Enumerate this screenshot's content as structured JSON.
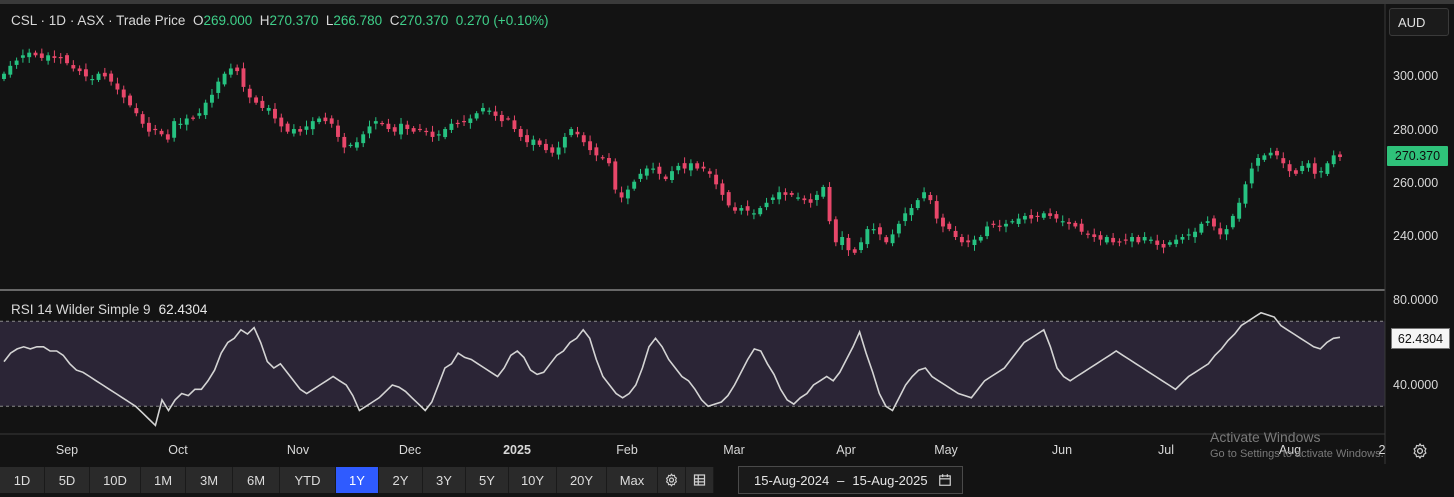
{
  "header": {
    "symbol": "CSL",
    "sep": "·",
    "interval": "1D",
    "exchange": "ASX",
    "price_type": "Trade Price",
    "open_label": "O",
    "open": "269.000",
    "high_label": "H",
    "high": "270.370",
    "low_label": "L",
    "low": "266.780",
    "close_label": "C",
    "close": "270.370",
    "change": "0.270 (+0.10%)"
  },
  "currency_button": "AUD",
  "price_label": "270.370",
  "rsi": {
    "title": "RSI 14 Wilder Simple 9",
    "value": "62.4304",
    "value_label": "62.4304",
    "y_ticks": [
      "80.0000",
      "40.0000"
    ]
  },
  "price_y_ticks": [
    "300.000",
    "280.000",
    "260.000",
    "240.000"
  ],
  "x_ticks": [
    "Sep",
    "Oct",
    "Nov",
    "Dec",
    "2025",
    "Feb",
    "Mar",
    "Apr",
    "May",
    "Jun",
    "Jul",
    "Aug",
    "2"
  ],
  "toolbar": {
    "ranges": [
      "1D",
      "5D",
      "10D",
      "1M",
      "3M",
      "6M",
      "YTD",
      "1Y",
      "2Y",
      "3Y",
      "5Y",
      "10Y",
      "20Y",
      "Max"
    ],
    "active": "1Y"
  },
  "date_range": {
    "from": "15-Aug-2024",
    "sep": "–",
    "to": "15-Aug-2025"
  },
  "watermark": {
    "line1": "Activate Windows",
    "line2": "Go to Settings to activate Windows."
  },
  "colors": {
    "up": "#26c281",
    "down": "#e8476a",
    "rsi_band": "#2b2536",
    "active": "#2f5bff"
  },
  "chart_data": [
    {
      "type": "candlestick",
      "title": "CSL · 1D · ASX · Trade Price",
      "currency": "AUD",
      "y_ticks": [
        240,
        260,
        280,
        300
      ],
      "x_ticks": [
        "Sep",
        "Oct",
        "Nov",
        "Dec",
        "2025",
        "Feb",
        "Mar",
        "Apr",
        "May",
        "Jun",
        "Jul",
        "Aug"
      ],
      "date_range": [
        "15-Aug-2024",
        "15-Aug-2025"
      ],
      "last": {
        "open": 269.0,
        "high": 270.37,
        "low": 266.78,
        "close": 270.37
      },
      "closes": [
        302,
        305,
        307,
        309,
        310,
        309,
        308,
        309,
        308,
        308,
        306,
        304,
        303,
        301,
        300,
        302,
        301,
        299,
        296,
        293,
        290,
        287,
        283,
        280,
        281,
        279,
        277,
        284,
        283,
        285,
        285,
        287,
        291,
        294,
        299,
        302,
        304,
        303,
        297,
        293,
        291,
        289,
        289,
        285,
        282,
        280,
        281,
        280,
        282,
        284,
        285,
        284,
        283,
        278,
        274,
        275,
        276,
        279,
        282,
        284,
        283,
        281,
        280,
        283,
        281,
        280,
        281,
        280,
        278,
        279,
        281,
        283,
        283,
        284,
        285,
        287,
        289,
        288,
        286,
        284,
        285,
        281,
        278,
        276,
        277,
        275,
        273,
        272,
        274,
        278,
        281,
        279,
        276,
        273,
        271,
        270,
        268,
        258,
        255,
        258,
        261,
        264,
        266,
        266,
        264,
        262,
        265,
        267,
        266,
        268,
        266,
        266,
        264,
        260,
        256,
        252,
        250,
        251,
        250,
        249,
        251,
        253,
        255,
        257,
        256,
        256,
        255,
        254,
        253,
        256,
        259,
        246,
        238,
        240,
        235,
        234,
        238,
        243,
        243,
        241,
        238,
        241,
        245,
        249,
        251,
        254,
        257,
        254,
        247,
        244,
        243,
        240,
        238,
        238,
        239,
        240,
        244,
        245,
        244,
        245,
        246,
        247,
        248,
        247,
        248,
        249,
        248,
        247,
        246,
        245,
        244,
        242,
        241,
        240,
        239,
        240,
        238,
        238,
        239,
        240,
        238,
        240,
        239,
        237,
        236,
        238,
        239,
        240,
        241,
        242,
        245,
        246,
        244,
        241,
        243,
        248,
        253,
        260,
        266,
        270,
        271,
        272,
        271,
        268,
        265,
        264,
        267,
        268,
        264,
        265,
        268,
        271,
        270.37
      ]
    },
    {
      "type": "line",
      "title": "RSI 14 Wilder Simple 9",
      "last": 62.4304,
      "y_ticks": [
        40,
        80
      ],
      "bands": [
        30,
        70
      ],
      "values": [
        51,
        55,
        57,
        58,
        57,
        58,
        58,
        56,
        56,
        54,
        50,
        47,
        46,
        44,
        42,
        40,
        38,
        36,
        34,
        32,
        30,
        27,
        24,
        21,
        33,
        28,
        33,
        36,
        35,
        38,
        38,
        42,
        47,
        55,
        60,
        62,
        66,
        64,
        67,
        60,
        51,
        48,
        50,
        46,
        42,
        38,
        36,
        38,
        40,
        42,
        44,
        42,
        40,
        35,
        28,
        30,
        32,
        34,
        37,
        40,
        39,
        37,
        34,
        31,
        28,
        32,
        40,
        48,
        50,
        55,
        53,
        52,
        50,
        48,
        46,
        44,
        48,
        54,
        56,
        53,
        47,
        45,
        46,
        50,
        54,
        56,
        60,
        62,
        66,
        62,
        52,
        44,
        40,
        36,
        34,
        36,
        40,
        48,
        58,
        62,
        58,
        52,
        48,
        44,
        42,
        38,
        33,
        30,
        31,
        32,
        35,
        40,
        46,
        52,
        57,
        56,
        50,
        45,
        38,
        33,
        31,
        34,
        36,
        40,
        42,
        44,
        42,
        46,
        52,
        58,
        65,
        55,
        46,
        36,
        30,
        28,
        34,
        40,
        44,
        47,
        48,
        44,
        42,
        40,
        38,
        36,
        35,
        34,
        38,
        42,
        44,
        46,
        48,
        52,
        56,
        60,
        62,
        64,
        66,
        58,
        48,
        44,
        42,
        44,
        46,
        48,
        50,
        52,
        54,
        56,
        54,
        52,
        50,
        48,
        46,
        44,
        42,
        40,
        38,
        41,
        44,
        46,
        48,
        50,
        54,
        57,
        61,
        64,
        68,
        70,
        72,
        74,
        73,
        72,
        68,
        66,
        64,
        62,
        60,
        58,
        57,
        60,
        62,
        62.43
      ]
    }
  ]
}
